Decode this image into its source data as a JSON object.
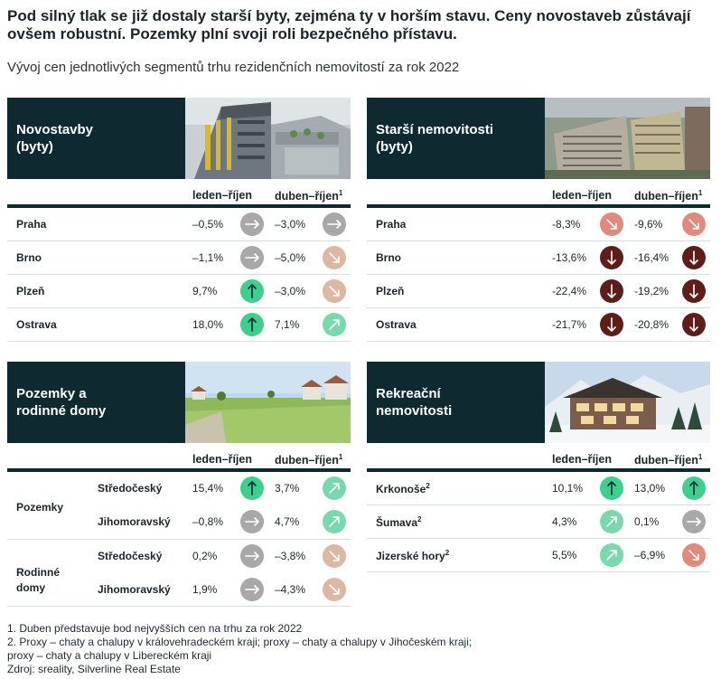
{
  "headline": "Pod silný tlak se již dostaly starší byty, zejména ty v horším stavu. Ceny novostaveb zůstávají ovšem robustní. Pozemky plní svoji roli bezpečného přístavu.",
  "subtitle": "Vývoj cen jednotlivých segmentů trhu rezidenčních nemovitostí za rok 2022",
  "columns": {
    "col1": "leden–říjen",
    "col2": "duben–říjen",
    "col2_sup": "1"
  },
  "colors": {
    "panel_header": "#0e2a30",
    "flat": "#a8a8a8",
    "down_light": "#dcb8a2",
    "down_mid": "#e08a7c",
    "down_strong": "#5e1d18",
    "up_light": "#7ad8ae",
    "up_strong": "#3ccf8e"
  },
  "panels": {
    "novostavby": {
      "title_line1": "Novostavby",
      "title_line2": "(byty)",
      "image_icon": "apartment-building-photo",
      "rows": [
        {
          "label": "Praha",
          "v1": "–0,5%",
          "i1": "flat-arrow-icon",
          "v2": "–3,0%",
          "i2": "flat-arrow-icon"
        },
        {
          "label": "Brno",
          "v1": "–1,1%",
          "i1": "flat-arrow-icon",
          "v2": "–5,0%",
          "i2": "down-right-arrow-icon"
        },
        {
          "label": "Plzeň",
          "v1": "9,7%",
          "i1": "up-arrow-icon",
          "v2": "–3,0%",
          "i2": "down-right-arrow-icon"
        },
        {
          "label": "Ostrava",
          "v1": "18,0%",
          "i1": "up-arrow-icon",
          "v2": "7,1%",
          "i2": "up-right-arrow-icon"
        }
      ]
    },
    "starsi": {
      "title_line1": "Starší nemovitosti",
      "title_line2": "(byty)",
      "image_icon": "panel-housing-photo",
      "rows": [
        {
          "label": "Praha",
          "v1": "-8,3%",
          "i1": "down-right-arrow-icon",
          "v2": "-9,6%",
          "i2": "down-right-arrow-icon"
        },
        {
          "label": "Brno",
          "v1": "-13,6%",
          "i1": "down-arrow-icon",
          "v2": "-16,4%",
          "i2": "down-arrow-icon"
        },
        {
          "label": "Plzeň",
          "v1": "-22,4%",
          "i1": "down-arrow-icon",
          "v2": "-19,2%",
          "i2": "down-arrow-icon"
        },
        {
          "label": "Ostrava",
          "v1": "-21,7%",
          "i1": "down-arrow-icon",
          "v2": "-20,8%",
          "i2": "down-arrow-icon"
        }
      ]
    },
    "pozemky": {
      "title_line1": "Pozemky a",
      "title_line2": "rodinné domy",
      "image_icon": "green-field-photo",
      "group1": "Pozemky",
      "group2_line1": "Rodinné",
      "group2_line2": "domy",
      "rows": [
        {
          "label": "Středočeský",
          "v1": "15,4%",
          "i1": "up-arrow-icon",
          "v2": "3,7%",
          "i2": "up-right-arrow-icon"
        },
        {
          "label": "Jihomoravský",
          "v1": "–0,8%",
          "i1": "flat-arrow-icon",
          "v2": "4,7%",
          "i2": "up-right-arrow-icon"
        },
        {
          "label": "Středočeský",
          "v1": "0,2%",
          "i1": "flat-arrow-icon",
          "v2": "–3,8%",
          "i2": "down-right-arrow-icon"
        },
        {
          "label": "Jihomoravský",
          "v1": "1,9%",
          "i1": "flat-arrow-icon",
          "v2": "–4,3%",
          "i2": "down-right-arrow-icon"
        }
      ]
    },
    "rekreacni": {
      "title_line1": "Rekreační",
      "title_line2": "nemovitosti",
      "image_icon": "mountain-chalet-photo",
      "rows": [
        {
          "label": "Krkonoše",
          "sup": "2",
          "v1": "10,1%",
          "i1": "up-arrow-icon",
          "v2": "13,0%",
          "i2": "up-arrow-icon"
        },
        {
          "label": "Šumava",
          "sup": "2",
          "v1": "4,3%",
          "i1": "up-right-arrow-icon",
          "v2": "0,1%",
          "i2": "flat-arrow-icon"
        },
        {
          "label": "Jizerské hory",
          "sup": "2",
          "v1": "5,5%",
          "i1": "up-right-arrow-icon",
          "v2": "–6,9%",
          "i2": "down-right-arrow-icon"
        }
      ]
    }
  },
  "footnotes": [
    "1. Duben představuje bod nejvyšších cen na trhu za rok 2022",
    "2. Proxy – chaty a chalupy v královehradeckém kraji; proxy – chaty a chalupy v Jihočeském kraji;",
    "proxy – chaty a chalupy v Libereckém kraji",
    "Zdroj: sreality, Silverline Real Estate"
  ]
}
